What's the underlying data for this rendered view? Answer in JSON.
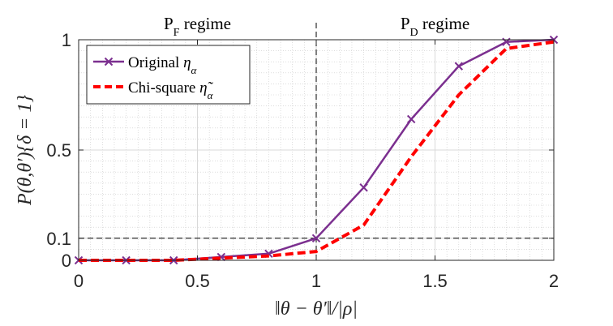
{
  "chart_data": {
    "type": "line",
    "title": "",
    "xlabel": "‖θ − θ′‖/|ρ|",
    "ylabel": "P(θ,θ′){δ = 1}",
    "xlim": [
      0,
      2
    ],
    "ylim": [
      0,
      1
    ],
    "x_ticks": [
      0,
      0.5,
      1,
      1.5,
      2
    ],
    "x_tick_labels": [
      "0",
      "0.5",
      "1",
      "1.5",
      "2"
    ],
    "y_ticks": [
      0,
      0.1,
      0.5,
      1
    ],
    "y_tick_labels": [
      "0",
      "0.1",
      "0.5",
      "1"
    ],
    "grid": true,
    "minor_grid": true,
    "legend_position": "top-left",
    "reference_lines": {
      "vertical_x": 1,
      "horizontal_y": 0.1
    },
    "regions": [
      {
        "label": "P",
        "subscript": "F",
        "suffix": " regime",
        "x_center": 0.5
      },
      {
        "label": "P",
        "subscript": "D",
        "suffix": " regime",
        "x_center": 1.5
      }
    ],
    "series": [
      {
        "name": "Original ηα",
        "name_main": "Original ",
        "name_sym": "η",
        "name_sub": "α",
        "color": "#7B2F8F",
        "style": "solid",
        "marker": "x",
        "x": [
          0,
          0.2,
          0.4,
          0.6,
          0.8,
          1.0,
          1.2,
          1.4,
          1.6,
          1.8,
          2.0
        ],
        "y": [
          0.0,
          0.0,
          0.0,
          0.015,
          0.03,
          0.1,
          0.33,
          0.64,
          0.88,
          0.99,
          1.0
        ]
      },
      {
        "name": "Chi-square η̃α",
        "name_main": "Chi-square ",
        "name_sym": "η̃",
        "name_sub": "α",
        "color": "#FF0000",
        "style": "dashed",
        "marker": "",
        "x": [
          0,
          0.2,
          0.4,
          0.6,
          0.8,
          1.0,
          1.2,
          1.4,
          1.6,
          1.8,
          2.0
        ],
        "y": [
          0.0,
          0.0,
          0.0,
          0.01,
          0.02,
          0.04,
          0.16,
          0.47,
          0.75,
          0.96,
          0.99
        ]
      }
    ]
  }
}
